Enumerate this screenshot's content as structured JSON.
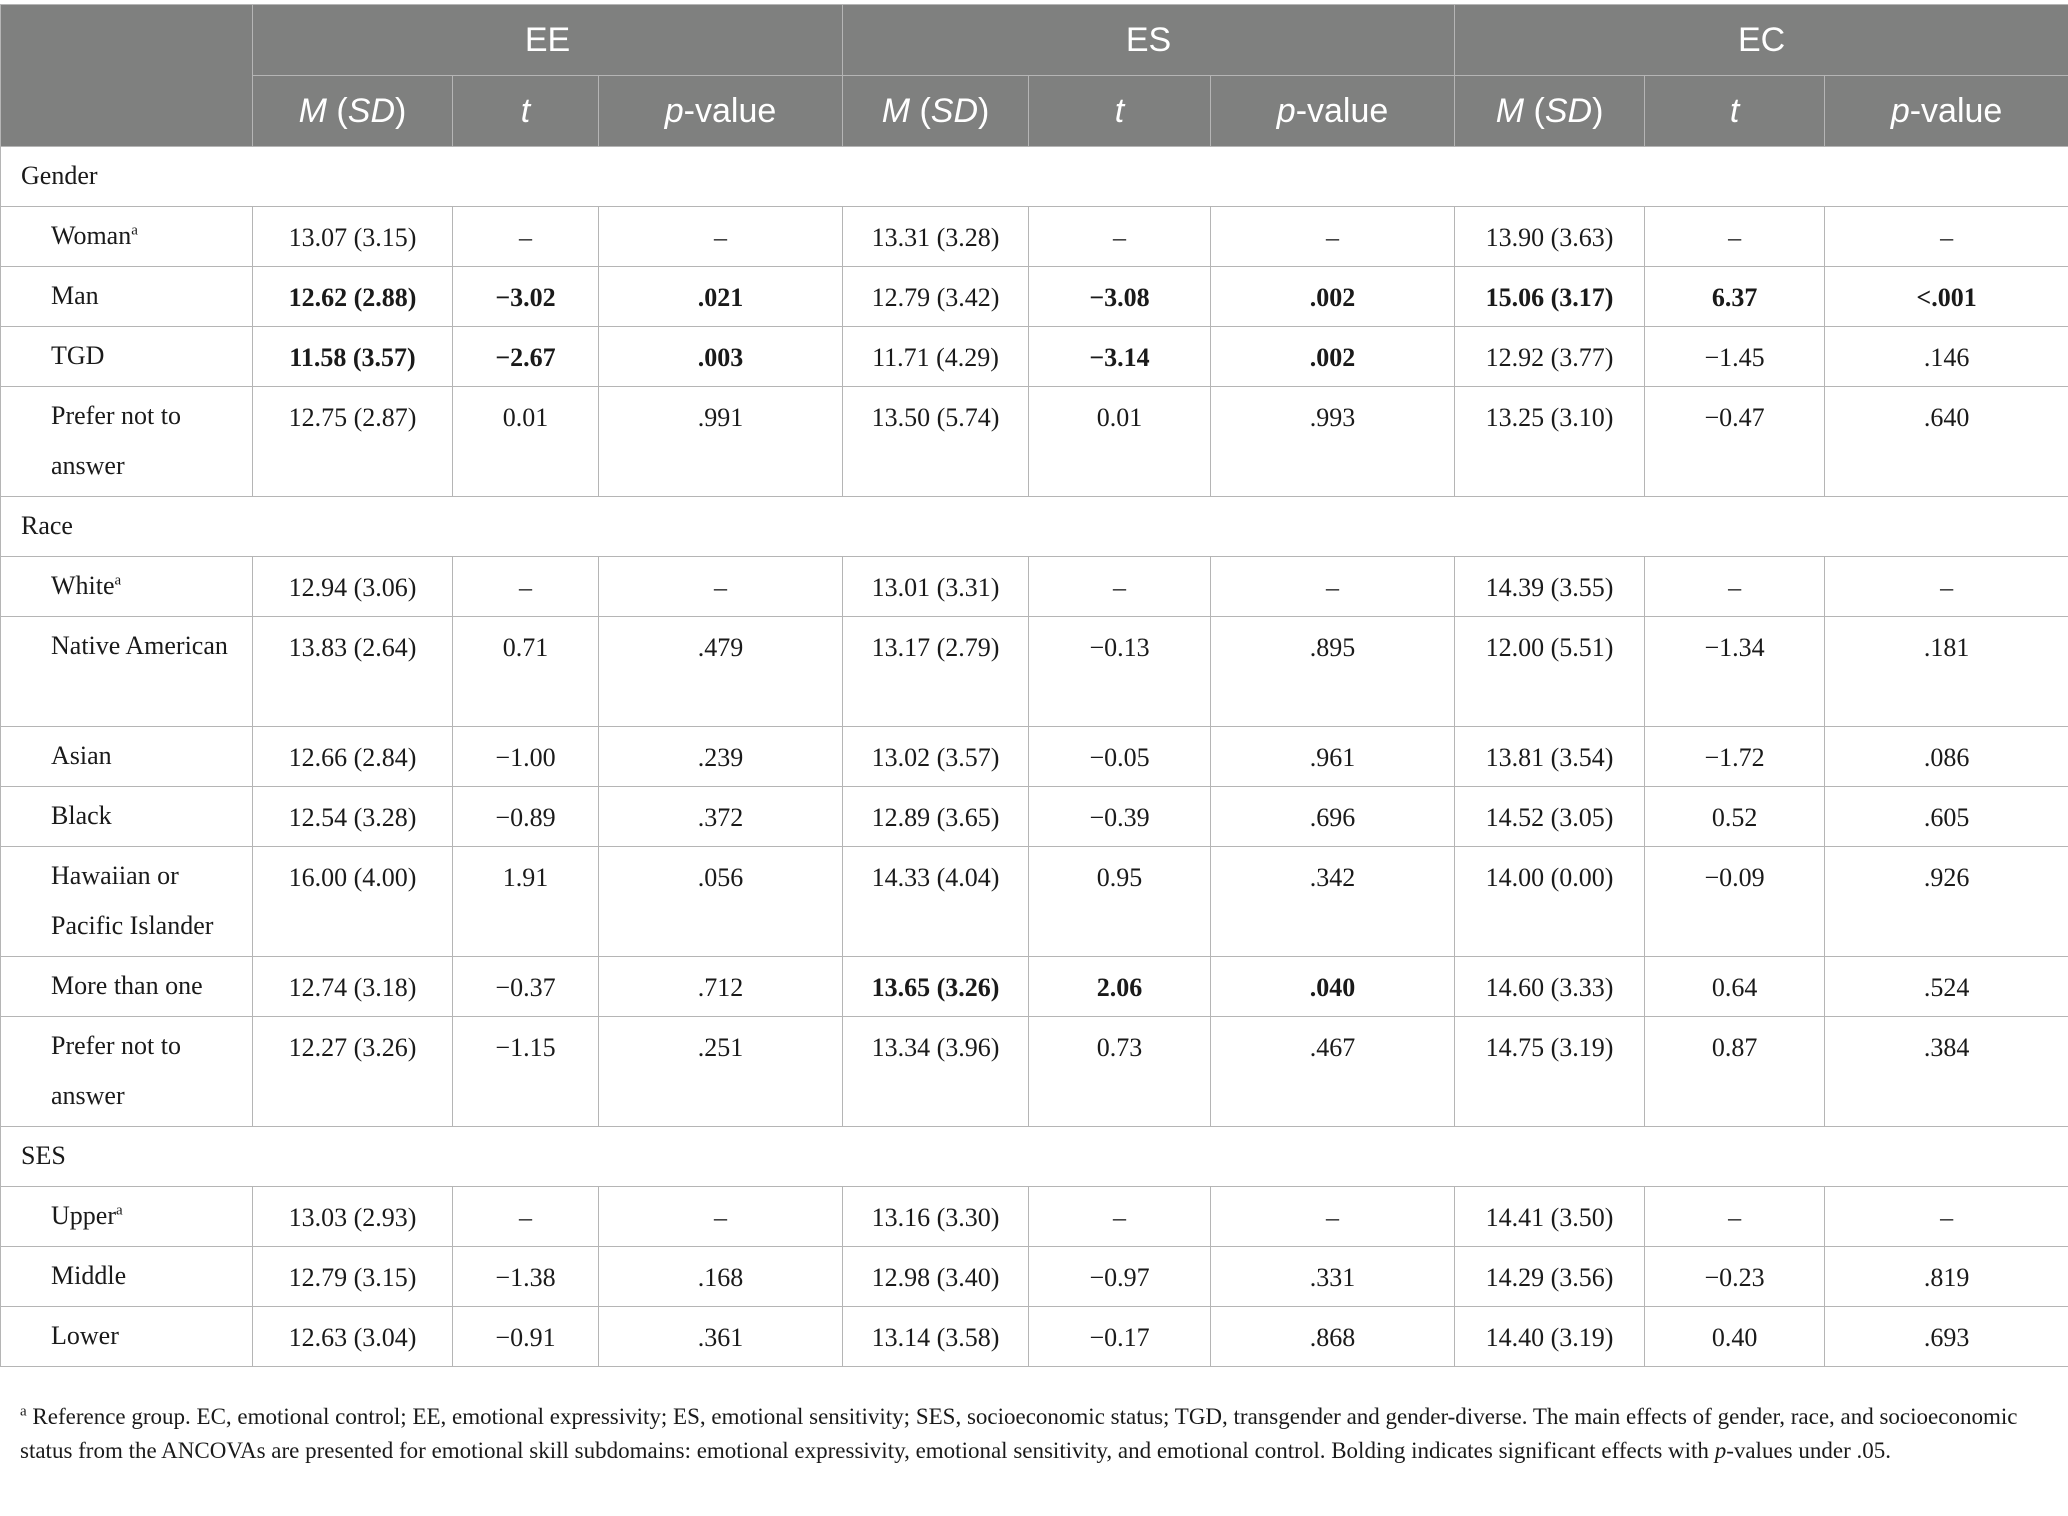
{
  "header": {
    "groups": [
      "EE",
      "ES",
      "EC"
    ],
    "cols": [
      "M (SD)",
      "t",
      "p-value"
    ]
  },
  "sections": [
    {
      "title": "Gender",
      "rows": [
        {
          "label": "Woman",
          "sup": "a",
          "tall": false,
          "cells": [
            "13.07 (3.15)",
            "–",
            "–",
            "13.31 (3.28)",
            "–",
            "–",
            "13.90 (3.63)",
            "–",
            "–"
          ],
          "bold": []
        },
        {
          "label": "Man",
          "sup": "",
          "tall": false,
          "cells": [
            "12.62 (2.88)",
            "−3.02",
            ".021",
            "12.79 (3.42)",
            "−3.08",
            ".002",
            "15.06 (3.17)",
            "6.37",
            "<.001"
          ],
          "bold": [
            0,
            1,
            2,
            4,
            5,
            6,
            7,
            8
          ]
        },
        {
          "label": "TGD",
          "sup": "",
          "tall": false,
          "cells": [
            "11.58 (3.57)",
            "−2.67",
            ".003",
            "11.71 (4.29)",
            "−3.14",
            ".002",
            "12.92 (3.77)",
            "−1.45",
            ".146"
          ],
          "bold": [
            0,
            1,
            2,
            4,
            5
          ]
        },
        {
          "label": "Prefer not to answer",
          "sup": "",
          "tall": true,
          "cells": [
            "12.75 (2.87)",
            "0.01",
            ".991",
            "13.50 (5.74)",
            "0.01",
            ".993",
            "13.25 (3.10)",
            "−0.47",
            ".640"
          ],
          "bold": []
        }
      ]
    },
    {
      "title": "Race",
      "rows": [
        {
          "label": "White",
          "sup": "a",
          "tall": false,
          "cells": [
            "12.94 (3.06)",
            "–",
            "–",
            "13.01 (3.31)",
            "–",
            "–",
            "14.39 (3.55)",
            "–",
            "–"
          ],
          "bold": []
        },
        {
          "label": "Native American",
          "sup": "",
          "tall": true,
          "cells": [
            "13.83 (2.64)",
            "0.71",
            ".479",
            "13.17 (2.79)",
            "−0.13",
            ".895",
            "12.00 (5.51)",
            "−1.34",
            ".181"
          ],
          "bold": []
        },
        {
          "label": "Asian",
          "sup": "",
          "tall": false,
          "cells": [
            "12.66 (2.84)",
            "−1.00",
            ".239",
            "13.02 (3.57)",
            "−0.05",
            ".961",
            "13.81 (3.54)",
            "−1.72",
            ".086"
          ],
          "bold": []
        },
        {
          "label": "Black",
          "sup": "",
          "tall": false,
          "cells": [
            "12.54 (3.28)",
            "−0.89",
            ".372",
            "12.89 (3.65)",
            "−0.39",
            ".696",
            "14.52 (3.05)",
            "0.52",
            ".605"
          ],
          "bold": []
        },
        {
          "label": "Hawaiian or Pacific Islander",
          "sup": "",
          "tall": true,
          "cells": [
            "16.00 (4.00)",
            "1.91",
            ".056",
            "14.33 (4.04)",
            "0.95",
            ".342",
            "14.00 (0.00)",
            "−0.09",
            ".926"
          ],
          "bold": []
        },
        {
          "label": "More than one",
          "sup": "",
          "tall": false,
          "cells": [
            "12.74 (3.18)",
            "−0.37",
            ".712",
            "13.65 (3.26)",
            "2.06",
            ".040",
            "14.60 (3.33)",
            "0.64",
            ".524"
          ],
          "bold": [
            3,
            4,
            5
          ]
        },
        {
          "label": "Prefer not to answer",
          "sup": "",
          "tall": true,
          "cells": [
            "12.27 (3.26)",
            "−1.15",
            ".251",
            "13.34 (3.96)",
            "0.73",
            ".467",
            "14.75 (3.19)",
            "0.87",
            ".384"
          ],
          "bold": []
        }
      ]
    },
    {
      "title": "SES",
      "rows": [
        {
          "label": "Upper",
          "sup": "a",
          "tall": false,
          "cells": [
            "13.03 (2.93)",
            "–",
            "–",
            "13.16 (3.30)",
            "–",
            "–",
            "14.41 (3.50)",
            "–",
            "–"
          ],
          "bold": []
        },
        {
          "label": "Middle",
          "sup": "",
          "tall": false,
          "cells": [
            "12.79 (3.15)",
            "−1.38",
            ".168",
            "12.98 (3.40)",
            "−0.97",
            ".331",
            "14.29 (3.56)",
            "−0.23",
            ".819"
          ],
          "bold": []
        },
        {
          "label": "Lower",
          "sup": "",
          "tall": false,
          "cells": [
            "12.63 (3.04)",
            "−0.91",
            ".361",
            "13.14 (3.58)",
            "−0.17",
            ".868",
            "14.40 (3.19)",
            "0.40",
            ".693"
          ],
          "bold": []
        }
      ]
    }
  ],
  "footnote": {
    "sup": "a",
    "part1": " Reference group. EC, emotional control; EE, emotional expressivity; ES, emotional sensitivity; SES, socioeconomic status; TGD, transgender and gender-diverse. The main effects of gender, race, and socioeconomic status from the ANCOVAs are presented for emotional skill subdomains: emotional expressivity, emotional sensitivity, and emotional control. Bolding indicates significant effects with ",
    "pv": "p",
    "part2": "-values under .05."
  }
}
